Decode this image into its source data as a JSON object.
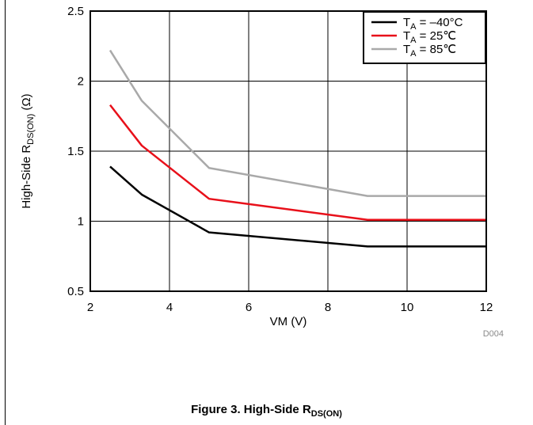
{
  "chart_data": {
    "type": "line",
    "xlabel": "VM (V)",
    "ylabel": {
      "main": "High-Side R",
      "sub": "DS(ON)",
      "unit": " (Ω)"
    },
    "xlim": [
      2,
      12
    ],
    "ylim": [
      0.5,
      2.5
    ],
    "xticks": [
      2,
      4,
      6,
      8,
      10,
      12
    ],
    "yticks": [
      0.5,
      1,
      1.5,
      2,
      2.5
    ],
    "xtick_labels": [
      "2",
      "4",
      "6",
      "8",
      "10",
      "12"
    ],
    "ytick_labels": [
      "0.5",
      "1",
      "1.5",
      "2",
      "2.5"
    ],
    "grid": true,
    "legend_position": "top-right",
    "series": [
      {
        "name": "TA = –40°C",
        "legend_main": "T",
        "legend_sub": "A",
        "legend_rest": " = –40°C",
        "color": "#000000",
        "x": [
          2.5,
          3.3,
          5,
          9,
          12
        ],
        "y": [
          1.39,
          1.19,
          0.92,
          0.82,
          0.82
        ]
      },
      {
        "name": "TA = 25°C",
        "legend_main": "T",
        "legend_sub": "A",
        "legend_rest": " = 25℃",
        "color": "#e8101a",
        "x": [
          2.5,
          3.3,
          5,
          9,
          12
        ],
        "y": [
          1.83,
          1.54,
          1.16,
          1.01,
          1.01
        ]
      },
      {
        "name": "TA = 85°C",
        "legend_main": "T",
        "legend_sub": "A",
        "legend_rest": " = 85℃",
        "color": "#a9a9a9",
        "x": [
          2.5,
          3.3,
          5,
          9,
          12
        ],
        "y": [
          2.22,
          1.86,
          1.38,
          1.18,
          1.18
        ]
      }
    ],
    "code_label": "D004"
  },
  "caption": {
    "main": "Figure 3. High-Side R",
    "sub": "DS(ON)"
  }
}
